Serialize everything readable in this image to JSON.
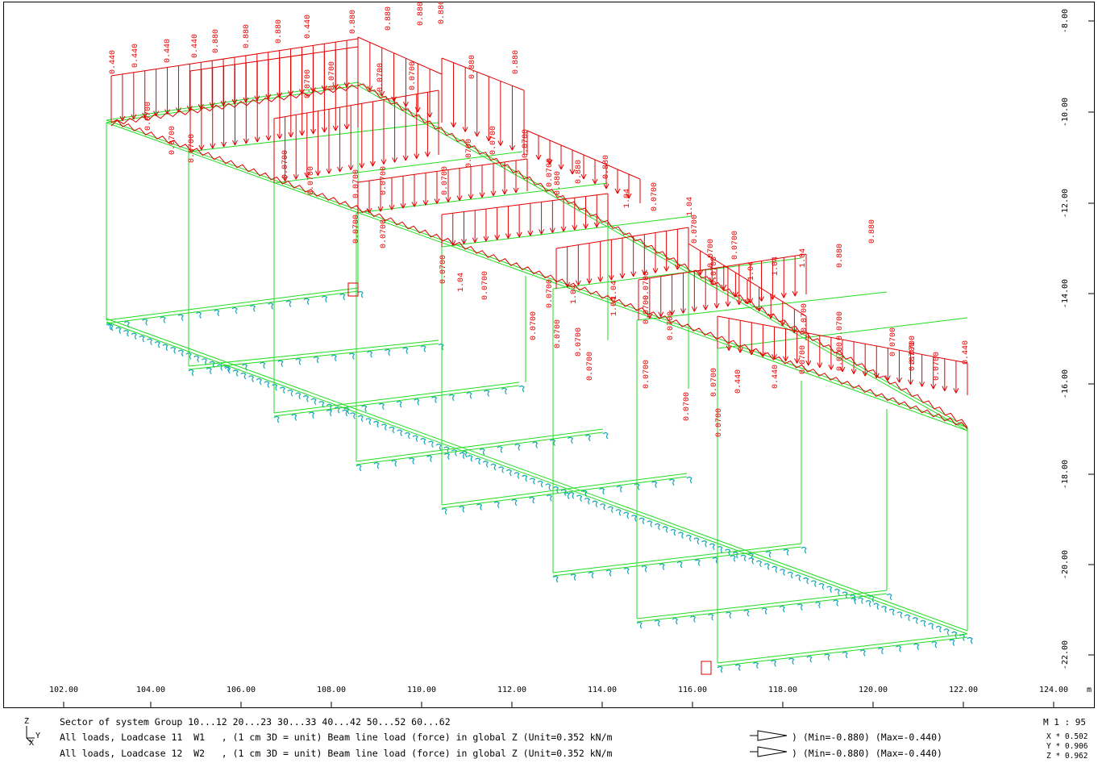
{
  "x_ticks": [
    "102.00",
    "104.00",
    "106.00",
    "108.00",
    "110.00",
    "112.00",
    "114.00",
    "116.00",
    "118.00",
    "120.00",
    "122.00",
    "124.00"
  ],
  "x_unit": "m",
  "y_ticks": [
    "-8.00",
    "-10.00",
    "-12.00",
    "-14.00",
    "-16.00",
    "-18.00",
    "-20.00",
    "-22.00"
  ],
  "load_values": [
    "0.440",
    "0.880",
    "0.0700",
    "1.04"
  ],
  "footer": {
    "axis_z": "Z",
    "axis_y": "Y",
    "axis_x": "X",
    "line1": "Sector of system Group 10...12 20...23 30...33 40...42 50...52 60...62",
    "line2": "All loads, Loadcase 11  W1   , (1 cm 3D = unit) Beam line load (force) in global Z (Unit=0.352 kN/m",
    "line3": "All loads, Loadcase 12  W2   , (1 cm 3D = unit) Beam line load (force) in global Z (Unit=0.352 kN/m",
    "range1": ") (Min=-0.880) (Max=-0.440)",
    "range2": ") (Min=-0.880) (Max=-0.440)",
    "scale": "M 1 : 95",
    "scale_x": "X * 0.502",
    "scale_y": "Y * 0.906",
    "scale_z": "Z * 0.962"
  },
  "colors": {
    "structure": "#22dd22",
    "load": "#e00000",
    "support": "#1aa7b8",
    "frame": "#000000"
  }
}
